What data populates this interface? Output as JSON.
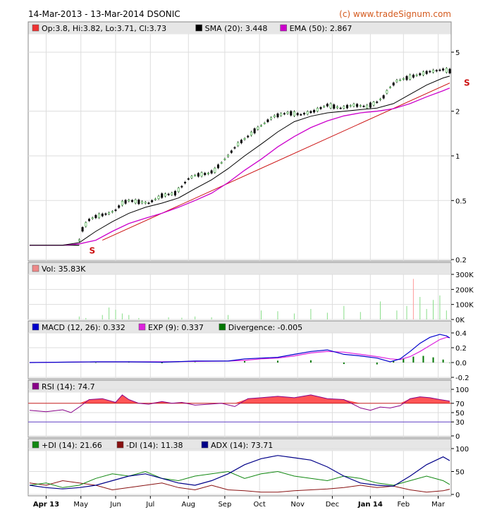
{
  "header": {
    "title": "14-Mar-2013 - 13-Mar-2014 DSONIC",
    "copyright": "(c) www.tradeSignum.com"
  },
  "colors": {
    "candle_up": "#33a333",
    "candle_down": "#000000",
    "sma": "#000000",
    "ema": "#cc00cc",
    "trendline": "#cc1111",
    "volume": "#88dd88",
    "volume_spike": "#ff9999",
    "macd": "#0000cc",
    "exp": "#dd22dd",
    "divergence": "#007700",
    "rsi": "#880088",
    "rsi_fill": "#ff5555",
    "plus_di": "#118811",
    "minus_di": "#881111",
    "adx": "#000088",
    "legend_strip": "#e6e6e6"
  },
  "chart_data": [
    {
      "panel": "price",
      "type": "candlestick",
      "legend": [
        {
          "label": "Op:3.8, Hi:3.82, Lo:3.71, Cl:3.73",
          "color": "#ee3333"
        },
        {
          "label": "SMA (20): 3.448",
          "color": "#000000"
        },
        {
          "label": "EMA (50): 2.867",
          "color": "#cc00cc"
        }
      ],
      "yscale": "log",
      "ylim": [
        0.2,
        6.5
      ],
      "yticks": [
        "5",
        "2",
        "1",
        "0.5",
        "0.2"
      ],
      "ytick_values": [
        5,
        2,
        1,
        0.5,
        0.2
      ],
      "annotations": [
        "S",
        "S"
      ],
      "series": [
        {
          "name": "Close",
          "x": [
            0,
            10,
            20,
            25,
            30,
            31,
            32,
            36,
            40,
            44,
            48,
            52,
            56,
            60,
            66,
            72,
            76,
            80,
            84,
            88,
            92,
            96,
            100,
            104,
            108,
            112,
            116,
            120,
            126,
            132,
            140,
            148,
            156,
            164,
            172,
            180,
            188,
            196,
            204,
            210,
            214,
            218,
            222,
            226,
            230,
            234,
            238,
            242,
            246,
            250,
            254
          ],
          "values": [
            0.25,
            0.25,
            0.25,
            0.26,
            0.27,
            0.29,
            0.32,
            0.37,
            0.39,
            0.4,
            0.41,
            0.43,
            0.48,
            0.5,
            0.49,
            0.48,
            0.51,
            0.54,
            0.55,
            0.56,
            0.62,
            0.7,
            0.74,
            0.75,
            0.76,
            0.8,
            0.9,
            1.0,
            1.2,
            1.35,
            1.6,
            1.85,
            1.95,
            1.9,
            2.0,
            2.2,
            2.1,
            2.2,
            2.15,
            2.3,
            2.5,
            2.9,
            3.2,
            3.3,
            3.4,
            3.5,
            3.6,
            3.7,
            3.75,
            3.82,
            3.73
          ]
        },
        {
          "name": "SMA (20)",
          "x": [
            0,
            20,
            30,
            40,
            50,
            60,
            70,
            80,
            90,
            100,
            110,
            120,
            130,
            140,
            150,
            160,
            170,
            180,
            190,
            200,
            210,
            220,
            230,
            240,
            250,
            254
          ],
          "values": [
            0.25,
            0.25,
            0.26,
            0.31,
            0.36,
            0.41,
            0.45,
            0.48,
            0.52,
            0.6,
            0.69,
            0.82,
            1.0,
            1.2,
            1.45,
            1.7,
            1.85,
            1.95,
            2.0,
            2.05,
            2.1,
            2.25,
            2.6,
            3.0,
            3.35,
            3.448
          ]
        },
        {
          "name": "EMA (50)",
          "x": [
            0,
            20,
            30,
            40,
            50,
            60,
            70,
            80,
            90,
            100,
            110,
            120,
            130,
            140,
            150,
            160,
            170,
            180,
            190,
            200,
            210,
            220,
            230,
            240,
            250,
            254
          ],
          "values": [
            0.25,
            0.25,
            0.255,
            0.27,
            0.31,
            0.35,
            0.38,
            0.41,
            0.45,
            0.5,
            0.56,
            0.66,
            0.8,
            0.95,
            1.15,
            1.35,
            1.55,
            1.72,
            1.86,
            1.95,
            2.0,
            2.08,
            2.25,
            2.5,
            2.75,
            2.867
          ]
        }
      ]
    },
    {
      "panel": "volume",
      "type": "bar",
      "legend": [
        {
          "label": "Vol: 35.83K",
          "color": "#ee8888"
        }
      ],
      "ylim": [
        0,
        300000
      ],
      "yticks": [
        "300K",
        "200K",
        "100K",
        "0K"
      ],
      "ytick_values": [
        300000,
        200000,
        100000,
        0
      ],
      "series": [
        {
          "name": "Vol",
          "x": [
            30,
            34,
            44,
            48,
            52,
            56,
            60,
            66,
            84,
            92,
            100,
            110,
            120,
            140,
            150,
            160,
            170,
            180,
            190,
            200,
            212,
            222,
            228,
            232,
            236,
            240,
            244,
            248,
            252
          ],
          "values": [
            20000,
            10000,
            30000,
            80000,
            65000,
            40000,
            30000,
            10000,
            15000,
            12000,
            20000,
            15000,
            30000,
            60000,
            55000,
            40000,
            70000,
            45000,
            90000,
            50000,
            120000,
            60000,
            90000,
            270000,
            150000,
            70000,
            130000,
            160000,
            60000
          ]
        }
      ]
    },
    {
      "panel": "macd",
      "type": "line",
      "legend": [
        {
          "label": "MACD (12, 26): 0.332",
          "color": "#0000cc"
        },
        {
          "label": "EXP (9): 0.337",
          "color": "#dd22dd"
        },
        {
          "label": "Divergence: -0.005",
          "color": "#007700"
        }
      ],
      "ylim": [
        -0.2,
        0.4
      ],
      "yticks": [
        "0.4",
        "0.2",
        "0.0",
        "-0.2"
      ],
      "ytick_values": [
        0.4,
        0.2,
        0.0,
        -0.2
      ],
      "series": [
        {
          "name": "MACD",
          "x": [
            0,
            40,
            60,
            80,
            100,
            120,
            130,
            140,
            150,
            160,
            170,
            180,
            190,
            200,
            210,
            218,
            224,
            230,
            236,
            242,
            248,
            252,
            254
          ],
          "values": [
            0,
            0.01,
            0.01,
            0.005,
            0.02,
            0.02,
            0.05,
            0.06,
            0.07,
            0.11,
            0.15,
            0.17,
            0.11,
            0.09,
            0.06,
            0.01,
            0.05,
            0.15,
            0.26,
            0.34,
            0.38,
            0.36,
            0.332
          ]
        },
        {
          "name": "EXP",
          "x": [
            0,
            40,
            60,
            80,
            100,
            120,
            130,
            140,
            150,
            160,
            170,
            180,
            190,
            200,
            210,
            218,
            224,
            230,
            236,
            242,
            248,
            252,
            254
          ],
          "values": [
            0,
            0.01,
            0.01,
            0.01,
            0.015,
            0.02,
            0.03,
            0.05,
            0.06,
            0.09,
            0.13,
            0.15,
            0.14,
            0.11,
            0.08,
            0.05,
            0.04,
            0.08,
            0.15,
            0.23,
            0.31,
            0.34,
            0.337
          ]
        },
        {
          "name": "Divergence",
          "x": [
            40,
            60,
            80,
            100,
            130,
            150,
            170,
            190,
            210,
            220,
            226,
            232,
            238,
            244,
            250,
            254
          ],
          "values": [
            -0.005,
            0.005,
            -0.01,
            0.005,
            0.02,
            0.025,
            0.03,
            -0.02,
            -0.025,
            0.02,
            0.06,
            0.08,
            0.09,
            0.07,
            0.04,
            -0.005
          ]
        }
      ]
    },
    {
      "panel": "rsi",
      "type": "line",
      "legend": [
        {
          "label": "RSI (14): 74.7",
          "color": "#880088"
        }
      ],
      "ylim": [
        0,
        100
      ],
      "yticks": [
        "100",
        "70",
        "50",
        "30",
        "0"
      ],
      "ytick_values": [
        100,
        70,
        50,
        30,
        0
      ],
      "levels": [
        70,
        30
      ],
      "series": [
        {
          "name": "RSI",
          "x": [
            0,
            10,
            20,
            25,
            30,
            36,
            44,
            52,
            56,
            60,
            66,
            72,
            80,
            86,
            92,
            100,
            108,
            116,
            124,
            132,
            140,
            150,
            160,
            170,
            180,
            190,
            200,
            206,
            212,
            218,
            224,
            230,
            236,
            242,
            248,
            254
          ],
          "values": [
            55,
            52,
            56,
            50,
            62,
            78,
            80,
            72,
            88,
            78,
            70,
            68,
            74,
            70,
            72,
            66,
            68,
            70,
            63,
            80,
            82,
            85,
            82,
            88,
            80,
            78,
            60,
            55,
            62,
            60,
            65,
            80,
            84,
            82,
            78,
            74.7
          ]
        }
      ]
    },
    {
      "panel": "dmi",
      "type": "line",
      "legend": [
        {
          "label": "+DI (14): 21.66",
          "color": "#118811"
        },
        {
          "label": "-DI (14): 11.38",
          "color": "#881111"
        },
        {
          "label": "ADX (14): 73.71",
          "color": "#000088"
        }
      ],
      "ylim": [
        0,
        100
      ],
      "yticks": [
        "100",
        "50",
        "0"
      ],
      "ytick_values": [
        100,
        50,
        0
      ],
      "series": [
        {
          "name": "+DI",
          "x": [
            0,
            10,
            20,
            30,
            40,
            50,
            60,
            70,
            80,
            90,
            100,
            110,
            120,
            130,
            140,
            150,
            160,
            170,
            180,
            190,
            200,
            210,
            220,
            230,
            240,
            250,
            254
          ],
          "values": [
            20,
            25,
            15,
            20,
            35,
            45,
            40,
            50,
            35,
            30,
            40,
            45,
            50,
            35,
            45,
            50,
            40,
            35,
            30,
            40,
            35,
            25,
            20,
            30,
            40,
            30,
            21.66
          ]
        },
        {
          "name": "-DI",
          "x": [
            0,
            10,
            20,
            30,
            40,
            50,
            60,
            70,
            80,
            90,
            100,
            110,
            120,
            130,
            140,
            150,
            160,
            170,
            180,
            190,
            200,
            210,
            220,
            230,
            240,
            250,
            254
          ],
          "values": [
            25,
            20,
            30,
            25,
            20,
            10,
            15,
            20,
            25,
            15,
            10,
            20,
            10,
            8,
            5,
            5,
            8,
            10,
            12,
            15,
            20,
            15,
            18,
            10,
            5,
            8,
            11.38
          ]
        },
        {
          "name": "ADX",
          "x": [
            0,
            10,
            20,
            30,
            40,
            50,
            60,
            70,
            80,
            90,
            100,
            110,
            120,
            130,
            140,
            150,
            160,
            170,
            180,
            190,
            200,
            210,
            220,
            230,
            240,
            250,
            254
          ],
          "values": [
            20,
            15,
            12,
            15,
            20,
            30,
            40,
            45,
            35,
            25,
            20,
            30,
            45,
            65,
            78,
            85,
            80,
            75,
            60,
            40,
            25,
            20,
            18,
            40,
            65,
            82,
            73.71
          ]
        }
      ]
    }
  ],
  "x_axis": {
    "labels": [
      "Apr 13",
      "May",
      "Jun",
      "Jul",
      "Aug",
      "Sep",
      "Oct",
      "Nov",
      "Dec",
      "Jan 14",
      "Feb",
      "Mar"
    ],
    "positions": [
      10,
      31,
      52,
      73,
      96,
      118,
      139,
      162,
      183,
      206,
      226,
      247
    ],
    "bold": [
      0,
      9
    ]
  }
}
